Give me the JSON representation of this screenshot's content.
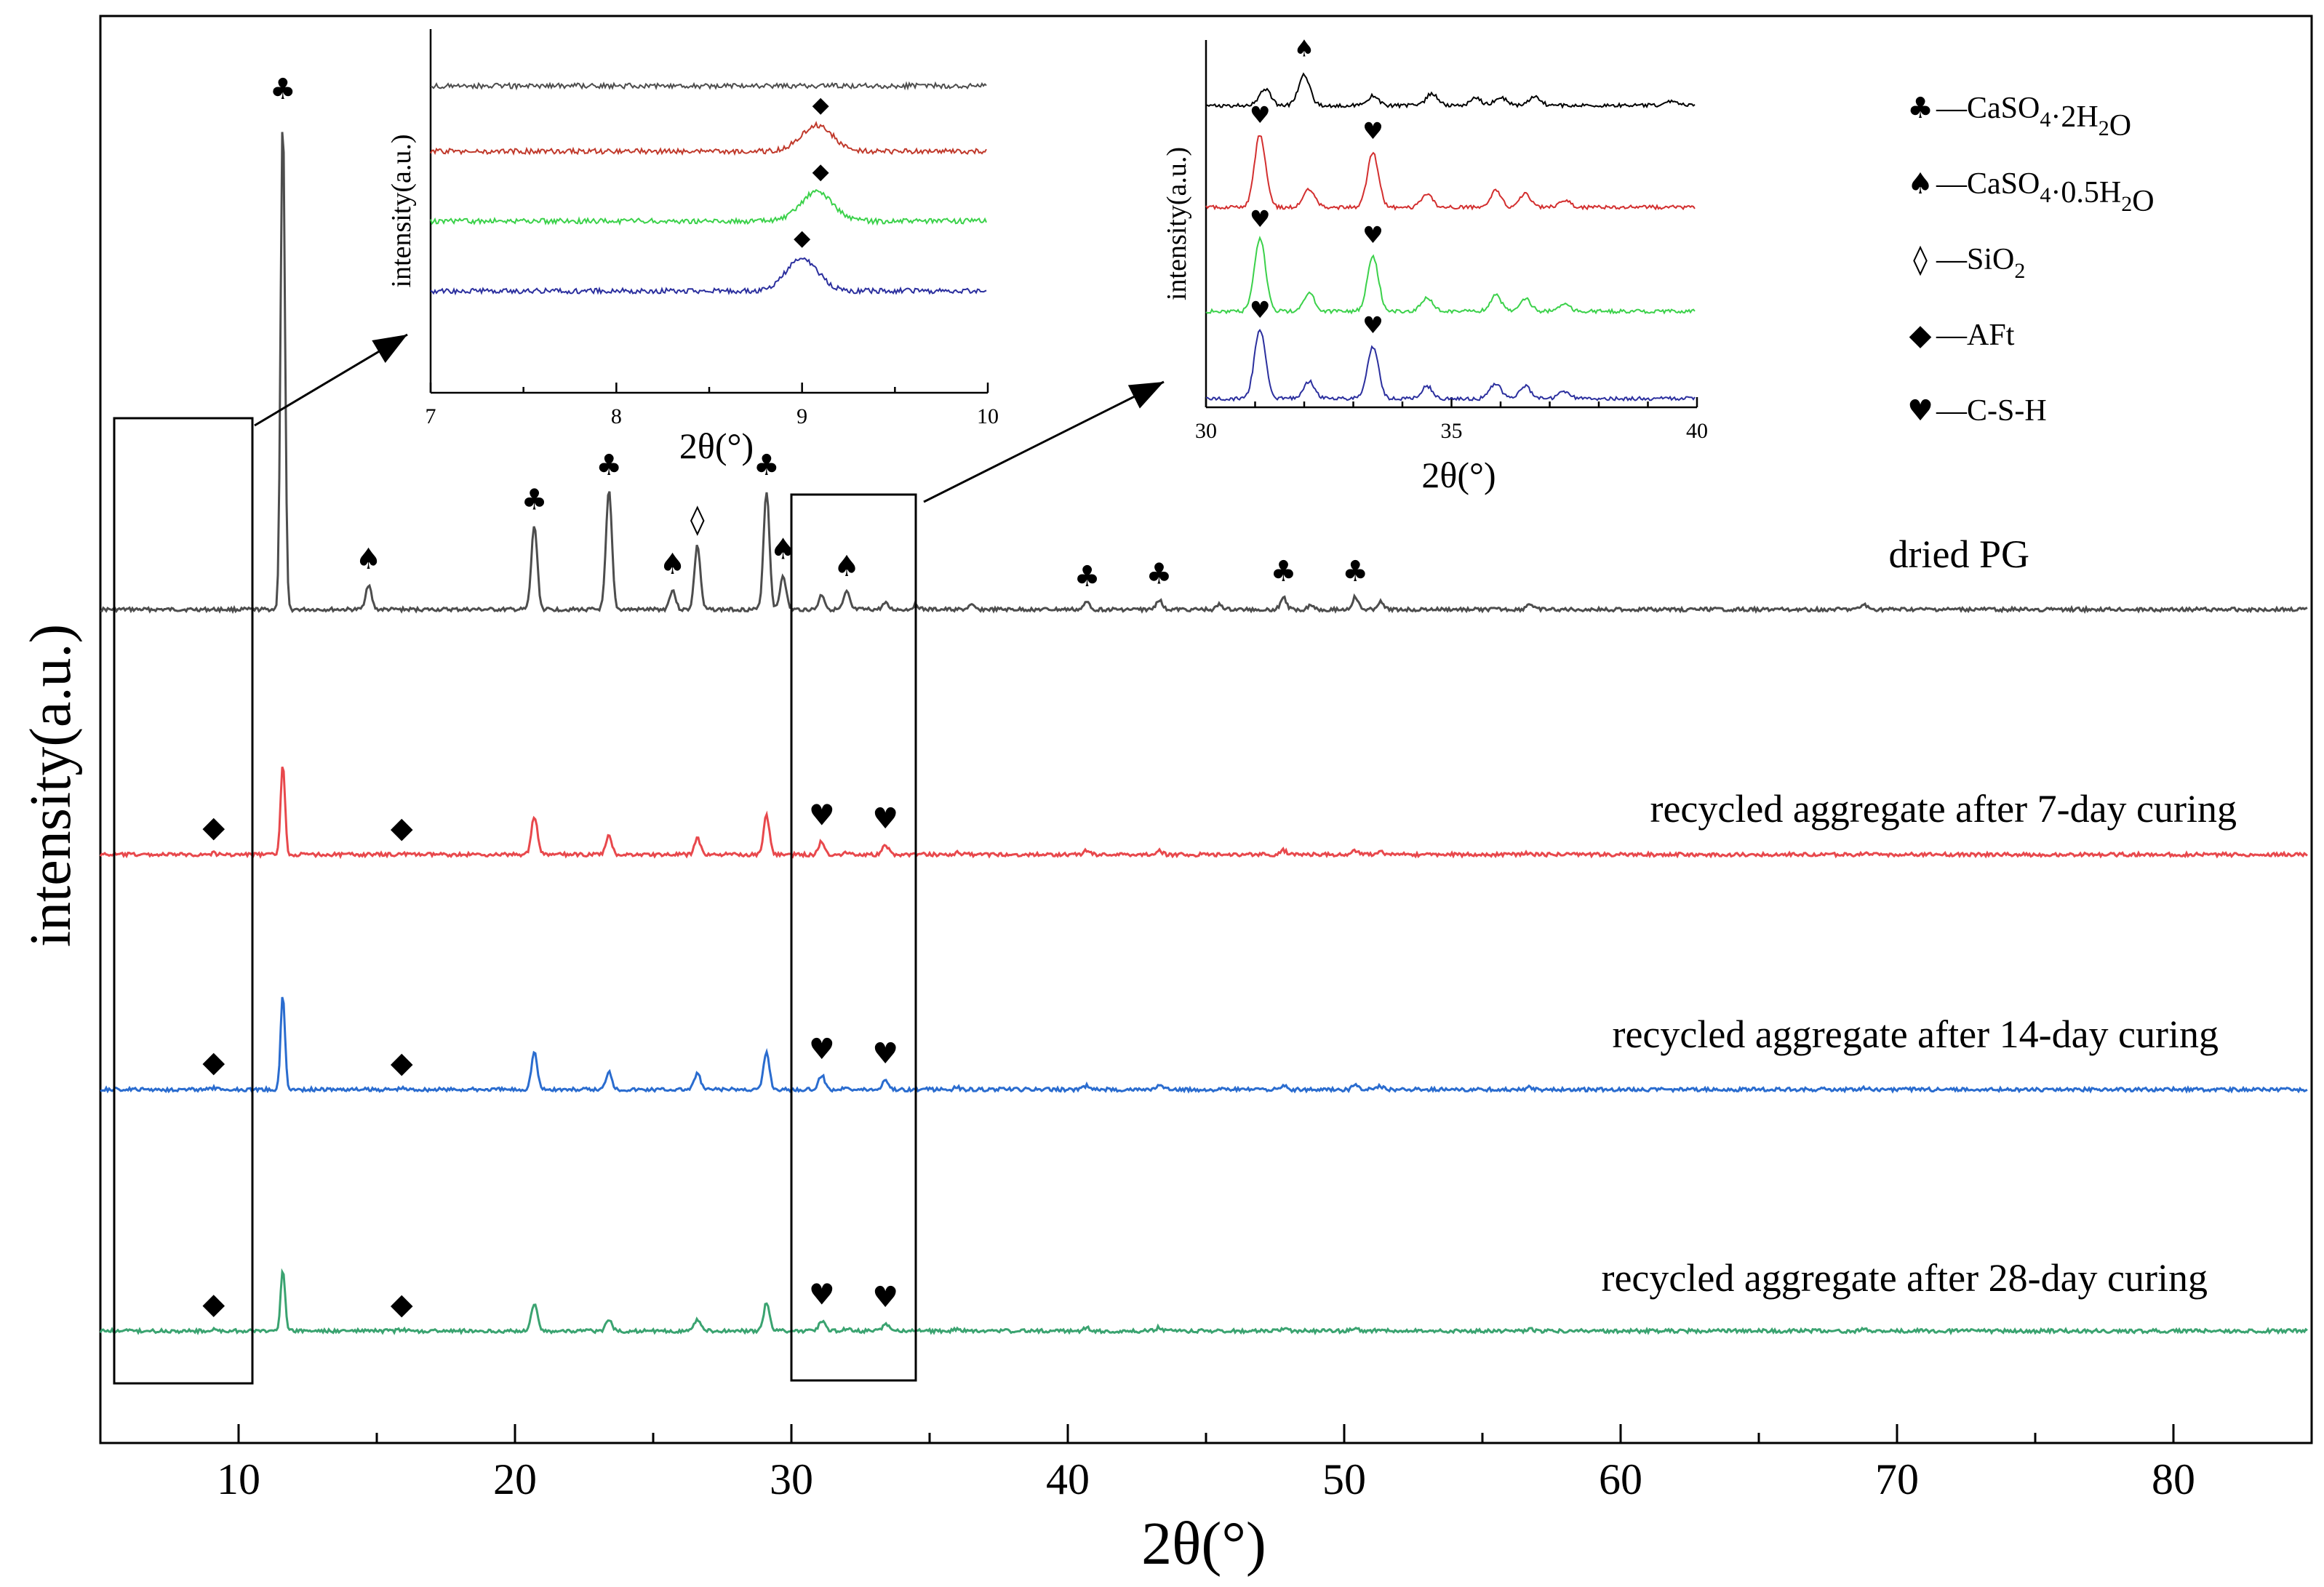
{
  "chart_data": {
    "type": "line",
    "title": "",
    "xlabel": "2θ(°)",
    "ylabel": "intensity(a.u.)",
    "xlim": [
      5,
      85
    ],
    "xticks": [
      10,
      20,
      30,
      40,
      50,
      60,
      70,
      80
    ],
    "series": [
      {
        "name": "dried PG",
        "color": "#4d4d4d",
        "peaks": [
          [
            11.6,
            1.0
          ],
          [
            14.7,
            0.05
          ],
          [
            20.7,
            0.17
          ],
          [
            23.4,
            0.24
          ],
          [
            25.7,
            0.04
          ],
          [
            26.6,
            0.13
          ],
          [
            29.1,
            0.24
          ],
          [
            29.7,
            0.07
          ],
          [
            31.1,
            0.03
          ],
          [
            32.0,
            0.035
          ],
          [
            33.4,
            0.012
          ],
          [
            34.5,
            0.01
          ],
          [
            36.5,
            0.008
          ],
          [
            40.7,
            0.015
          ],
          [
            43.3,
            0.02
          ],
          [
            45.5,
            0.01
          ],
          [
            47.8,
            0.025
          ],
          [
            48.8,
            0.01
          ],
          [
            50.4,
            0.025
          ],
          [
            51.3,
            0.015
          ],
          [
            56.7,
            0.012
          ],
          [
            68.8,
            0.01
          ]
        ]
      },
      {
        "name": "recycled aggregate after 7-day curing",
        "color": "#e8484c",
        "peaks": [
          [
            9.1,
            0.008
          ],
          [
            11.6,
            0.45
          ],
          [
            15.9,
            0.006
          ],
          [
            20.7,
            0.19
          ],
          [
            23.4,
            0.09
          ],
          [
            26.6,
            0.08
          ],
          [
            29.1,
            0.19
          ],
          [
            31.1,
            0.065
          ],
          [
            32.0,
            0.015
          ],
          [
            33.4,
            0.05
          ],
          [
            36.0,
            0.01
          ],
          [
            40.7,
            0.02
          ],
          [
            43.3,
            0.02
          ],
          [
            47.8,
            0.02
          ],
          [
            50.4,
            0.02
          ],
          [
            51.3,
            0.015
          ],
          [
            56.7,
            0.01
          ],
          [
            68.8,
            0.008
          ]
        ]
      },
      {
        "name": "recycled aggregate after 14-day curing",
        "color": "#2a6ccf",
        "peaks": [
          [
            9.1,
            0.008
          ],
          [
            11.6,
            0.46
          ],
          [
            15.9,
            0.006
          ],
          [
            20.7,
            0.18
          ],
          [
            23.4,
            0.09
          ],
          [
            26.6,
            0.08
          ],
          [
            29.1,
            0.18
          ],
          [
            31.1,
            0.07
          ],
          [
            32.0,
            0.015
          ],
          [
            33.4,
            0.05
          ],
          [
            36.0,
            0.01
          ],
          [
            40.7,
            0.02
          ],
          [
            43.3,
            0.02
          ],
          [
            47.8,
            0.02
          ],
          [
            50.4,
            0.02
          ],
          [
            51.3,
            0.015
          ],
          [
            56.7,
            0.01
          ],
          [
            68.8,
            0.008
          ]
        ]
      },
      {
        "name": "recycled aggregate after 28-day curing",
        "color": "#3aa370",
        "peaks": [
          [
            9.1,
            0.008
          ],
          [
            11.6,
            0.36
          ],
          [
            15.9,
            0.006
          ],
          [
            20.7,
            0.16
          ],
          [
            23.4,
            0.065
          ],
          [
            26.6,
            0.07
          ],
          [
            29.1,
            0.16
          ],
          [
            31.1,
            0.06
          ],
          [
            32.0,
            0.015
          ],
          [
            33.4,
            0.045
          ],
          [
            36.0,
            0.01
          ],
          [
            40.7,
            0.02
          ],
          [
            43.3,
            0.02
          ],
          [
            47.8,
            0.015
          ],
          [
            50.4,
            0.015
          ],
          [
            51.3,
            0.012
          ],
          [
            56.7,
            0.01
          ],
          [
            68.8,
            0.008
          ]
        ]
      }
    ],
    "series_labels": [
      "dried PG",
      "recycled aggregate after 7-day curing",
      "recycled aggregate after 14-day curing",
      "recycled aggregate after 28-day curing"
    ],
    "peak_markers": [
      {
        "series": 0,
        "x": 11.6,
        "symbol": "♣"
      },
      {
        "series": 0,
        "x": 14.7,
        "symbol": "♠"
      },
      {
        "series": 0,
        "x": 20.7,
        "symbol": "♣"
      },
      {
        "series": 0,
        "x": 23.4,
        "symbol": "♣"
      },
      {
        "series": 0,
        "x": 25.7,
        "symbol": "♠"
      },
      {
        "series": 0,
        "x": 26.6,
        "symbol": "◊"
      },
      {
        "series": 0,
        "x": 29.1,
        "symbol": "♣"
      },
      {
        "series": 0,
        "x": 29.7,
        "symbol": "♠"
      },
      {
        "series": 0,
        "x": 32.0,
        "symbol": "♠"
      },
      {
        "series": 0,
        "x": 40.7,
        "symbol": "♣"
      },
      {
        "series": 0,
        "x": 43.3,
        "symbol": "♣"
      },
      {
        "series": 0,
        "x": 47.8,
        "symbol": "♣"
      },
      {
        "series": 0,
        "x": 50.4,
        "symbol": "♣"
      },
      {
        "series": 1,
        "x": 9.1,
        "symbol": "◆"
      },
      {
        "series": 1,
        "x": 15.9,
        "symbol": "◆"
      },
      {
        "series": 1,
        "x": 31.1,
        "symbol": "♥"
      },
      {
        "series": 1,
        "x": 33.4,
        "symbol": "♥"
      },
      {
        "series": 2,
        "x": 9.1,
        "symbol": "◆"
      },
      {
        "series": 2,
        "x": 15.9,
        "symbol": "◆"
      },
      {
        "series": 2,
        "x": 31.1,
        "symbol": "♥"
      },
      {
        "series": 2,
        "x": 33.4,
        "symbol": "♥"
      },
      {
        "series": 3,
        "x": 9.1,
        "symbol": "◆"
      },
      {
        "series": 3,
        "x": 15.9,
        "symbol": "◆"
      },
      {
        "series": 3,
        "x": 31.1,
        "symbol": "♥"
      },
      {
        "series": 3,
        "x": 33.4,
        "symbol": "♥"
      }
    ],
    "highlight_regions": [
      [
        5.5,
        10.5
      ],
      [
        30.0,
        34.5
      ]
    ],
    "insets": [
      {
        "xlabel": "2θ(°)",
        "ylabel": "intensity(a.u.)",
        "xlim": [
          7,
          10
        ],
        "xticks": [
          7,
          8,
          9,
          10
        ],
        "peak_x": 9.05,
        "peak_heights": [
          0.0,
          0.8,
          0.9,
          1.0
        ],
        "peak_symbol": "◆"
      },
      {
        "xlabel": "2θ(°)",
        "ylabel": "intensity(a.u.)",
        "xlim": [
          30,
          40
        ],
        "xticks": [
          30,
          35,
          40
        ],
        "top_peaks": [
          [
            31.2,
            0.35
          ],
          [
            32.0,
            0.65
          ],
          [
            33.4,
            0.2
          ],
          [
            34.6,
            0.25
          ],
          [
            35.5,
            0.15
          ],
          [
            36.0,
            0.18
          ],
          [
            36.7,
            0.2
          ],
          [
            39.5,
            0.1
          ]
        ],
        "csh_peaks": [
          [
            31.1,
            1.0
          ],
          [
            32.1,
            0.25
          ],
          [
            33.4,
            0.75
          ],
          [
            34.5,
            0.18
          ],
          [
            35.9,
            0.22
          ],
          [
            36.5,
            0.18
          ],
          [
            37.3,
            0.1
          ]
        ],
        "top_marker": {
          "x": 32.0,
          "symbol": "♠"
        },
        "csh_markers": [
          {
            "x": 31.1,
            "symbol": "♥"
          },
          {
            "x": 33.4,
            "symbol": "♥"
          }
        ]
      }
    ],
    "legend": {
      "position": "top-right",
      "entries": [
        {
          "symbol": "♣",
          "prefix": "—CaSO",
          "sub1": "4",
          "mid": "·2H",
          "sub2": "2",
          "suffix": "O"
        },
        {
          "symbol": "♠",
          "prefix": "—CaSO",
          "sub1": "4",
          "mid": "·0.5H",
          "sub2": "2",
          "suffix": "O"
        },
        {
          "symbol": "◊",
          "prefix": "—SiO",
          "sub1": "2",
          "mid": "",
          "sub2": "",
          "suffix": ""
        },
        {
          "symbol": "◆",
          "prefix": "—AFt",
          "sub1": "",
          "mid": "",
          "sub2": "",
          "suffix": ""
        },
        {
          "symbol": "♥",
          "prefix": "—C-S-H",
          "sub1": "",
          "mid": "",
          "sub2": "",
          "suffix": ""
        }
      ]
    }
  }
}
